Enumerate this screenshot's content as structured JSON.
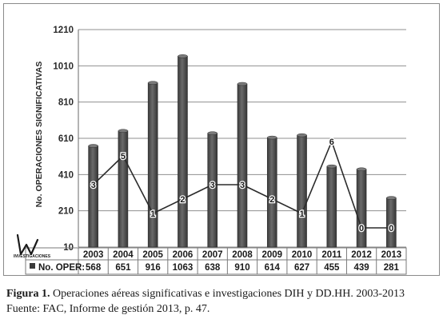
{
  "chart_data": {
    "type": "bar",
    "categories": [
      "2003",
      "2004",
      "2005",
      "2006",
      "2007",
      "2008",
      "2009",
      "2010",
      "2011",
      "2012",
      "2013"
    ],
    "series": [
      {
        "name": "No. OPER:",
        "values": [
          568,
          651,
          916,
          1063,
          638,
          910,
          614,
          627,
          455,
          439,
          281
        ]
      }
    ],
    "line_series": {
      "values": [
        3,
        5,
        1,
        2,
        3,
        3,
        2,
        1,
        6,
        0,
        0
      ]
    },
    "ylabel": "No. OPERACIONES  SIGNIFICATIVAS",
    "yticks": [
      10,
      210,
      410,
      610,
      810,
      1010,
      1210
    ],
    "ylim": [
      10,
      1210
    ],
    "grid": true,
    "legend": "data table below x-axis",
    "colors": {
      "bar": "#555555",
      "line": "#2b2b2b",
      "grid": "#8f8f8f"
    }
  },
  "logo": {
    "text": "INVESTIGACIONES"
  },
  "caption": {
    "label": "Figura 1.",
    "text": " Operaciones aéreas significativas e investigaciones DIH y DD.HH. 2003-2013",
    "source": "Fuente: FAC, Informe de gestión 2013, p. 47."
  }
}
